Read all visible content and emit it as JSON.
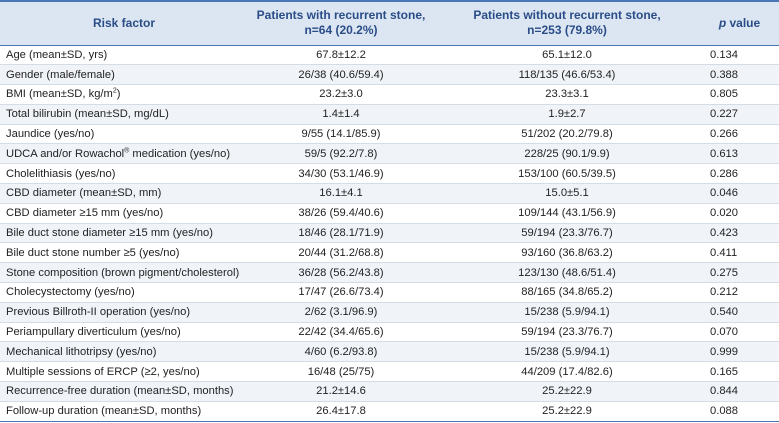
{
  "header": {
    "risk_factor": "Risk factor",
    "with_recurrent_l1": "Patients with recurrent stone,",
    "with_recurrent_l2": "n=64 (20.2%)",
    "without_recurrent_l1": "Patients without recurrent stone,",
    "without_recurrent_l2": "n=253 (79.8%)",
    "p_label": "p",
    "value_label": " value"
  },
  "rows": [
    {
      "factor": "Age (mean±SD, yrs)",
      "with": "67.8±12.2",
      "without": "65.1±12.0",
      "p": "0.134"
    },
    {
      "factor": "Gender (male/female)",
      "with": "26/38 (40.6/59.4)",
      "without": "118/135 (46.6/53.4)",
      "p": "0.388"
    },
    {
      "factor": "BMI (mean±SD, kg/m",
      "sup": "2",
      "factor_tail": ")",
      "with": "23.2±3.0",
      "without": "23.3±3.1",
      "p": "0.805"
    },
    {
      "factor": "Total bilirubin (mean±SD, mg/dL)",
      "with": "1.4±1.4",
      "without": "1.9±2.7",
      "p": "0.227"
    },
    {
      "factor": "Jaundice (yes/no)",
      "with": "9/55 (14.1/85.9)",
      "without": "51/202 (20.2/79.8)",
      "p": "0.266"
    },
    {
      "factor": "UDCA and/or Rowachol",
      "sup": "®",
      "factor_tail": " medication (yes/no)",
      "with": "59/5 (92.2/7.8)",
      "without": "228/25 (90.1/9.9)",
      "p": "0.613"
    },
    {
      "factor": "Cholelithiasis (yes/no)",
      "with": "34/30 (53.1/46.9)",
      "without": "153/100 (60.5/39.5)",
      "p": "0.286"
    },
    {
      "factor": "CBD diameter (mean±SD, mm)",
      "with": "16.1±4.1",
      "without": "15.0±5.1",
      "p": "0.046"
    },
    {
      "factor": "CBD diameter ≥15 mm (yes/no)",
      "with": "38/26 (59.4/40.6)",
      "without": "109/144 (43.1/56.9)",
      "p": "0.020"
    },
    {
      "factor": "Bile duct stone diameter ≥15 mm (yes/no)",
      "with": "18/46 (28.1/71.9)",
      "without": "59/194 (23.3/76.7)",
      "p": "0.423"
    },
    {
      "factor": "Bile duct stone number ≥5 (yes/no)",
      "with": "20/44 (31.2/68.8)",
      "without": "93/160 (36.8/63.2)",
      "p": "0.411"
    },
    {
      "factor": "Stone composition (brown pigment/cholesterol)",
      "with": "36/28 (56.2/43.8)",
      "without": "123/130 (48.6/51.4)",
      "p": "0.275"
    },
    {
      "factor": "Cholecystectomy (yes/no)",
      "with": "17/47 (26.6/73.4)",
      "without": "88/165 (34.8/65.2)",
      "p": "0.212"
    },
    {
      "factor": "Previous Billroth-II operation (yes/no)",
      "with": "2/62 (3.1/96.9)",
      "without": "15/238 (5.9/94.1)",
      "p": "0.540"
    },
    {
      "factor": "Periampullary diverticulum (yes/no)",
      "with": "22/42 (34.4/65.6)",
      "without": "59/194 (23.3/76.7)",
      "p": "0.070"
    },
    {
      "factor": "Mechanical lithotripsy (yes/no)",
      "with": "4/60 (6.2/93.8)",
      "without": "15/238 (5.9/94.1)",
      "p": "0.999"
    },
    {
      "factor": "Multiple sessions of ERCP (≥2, yes/no)",
      "with": "16/48 (25/75)",
      "without": "44/209 (17.4/82.6)",
      "p": "0.165"
    },
    {
      "factor": "Recurrence-free duration (mean±SD, months)",
      "with": "21.2±14.6",
      "without": "25.2±22.9",
      "p": "0.844"
    },
    {
      "factor": "Follow-up duration (mean±SD, months)",
      "with": "26.4±17.8",
      "without": "25.2±22.9",
      "p": "0.088"
    }
  ]
}
